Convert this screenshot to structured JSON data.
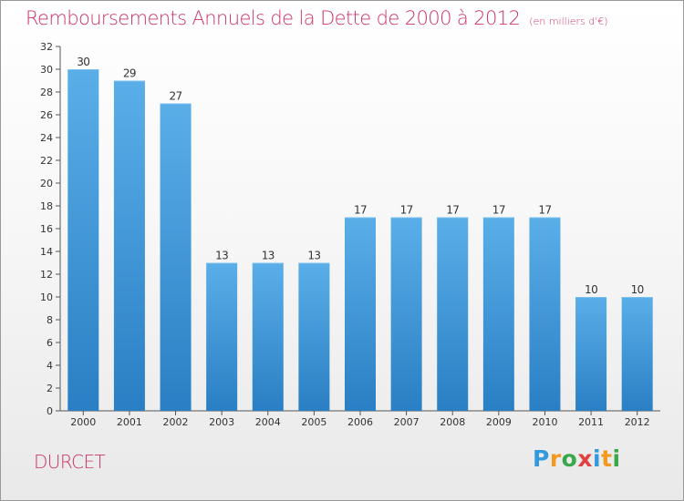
{
  "title": "Remboursements Annuels de la Dette de 2000 à 2012",
  "subtitle": "(en milliers d'€)",
  "commune": "DURCET",
  "logo": {
    "letters": [
      "P",
      "r",
      "o",
      "x",
      "i",
      "t",
      "i"
    ],
    "colors": [
      "#3399dd",
      "#f29a1f",
      "#3aa84a",
      "#e23f3f",
      "#3399dd",
      "#f29a1f",
      "#3aa84a"
    ]
  },
  "colors": {
    "bar": "#3f95d8",
    "bar_light": "#5aaee8",
    "bar_dark": "#2a7fc4",
    "title": "#cc3366"
  },
  "chart_data": {
    "type": "bar",
    "categories": [
      "2000",
      "2001",
      "2002",
      "2003",
      "2004",
      "2005",
      "2006",
      "2007",
      "2008",
      "2009",
      "2010",
      "2011",
      "2012"
    ],
    "values": [
      30,
      29,
      27,
      13,
      13,
      13,
      17,
      17,
      17,
      17,
      17,
      10,
      10
    ],
    "ylim": [
      0,
      32
    ],
    "yticks": [
      0,
      2,
      4,
      6,
      8,
      10,
      12,
      14,
      16,
      18,
      20,
      22,
      24,
      26,
      28,
      30,
      32
    ],
    "grid": false
  }
}
